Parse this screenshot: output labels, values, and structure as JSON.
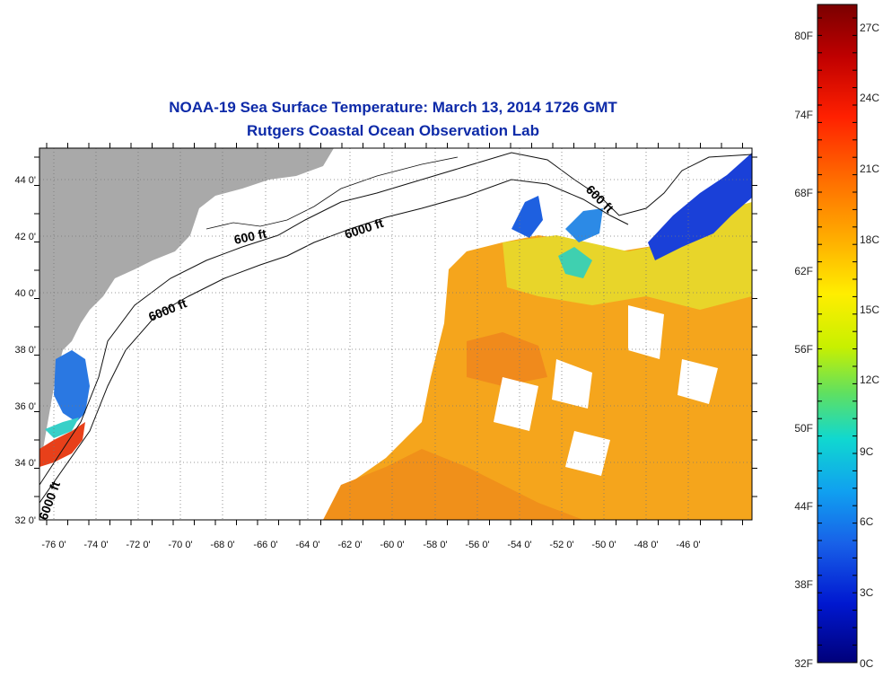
{
  "title": "NOAA-19 Sea Surface Temperature:  March 13, 2014 1726 GMT",
  "subtitle": "Rutgers Coastal Ocean Observation Lab",
  "map": {
    "lat_labels": [
      "44 0'",
      "42 0'",
      "40 0'",
      "38 0'",
      "36 0'",
      "34 0'",
      "32 0'"
    ],
    "lon_labels": [
      "-76 0'",
      "-74 0'",
      "-72 0'",
      "-70 0'",
      "-68 0'",
      "-66 0'",
      "-64 0'",
      "-62 0'",
      "-60 0'",
      "-58 0'",
      "-56 0'",
      "-54 0'",
      "-52 0'",
      "-50 0'",
      "-48 0'",
      "-46 0'"
    ],
    "contour_labels": [
      "600 ft",
      "6000 ft",
      "6000 ft",
      "600 ft",
      "6000 ft"
    ]
  },
  "colorbar": {
    "fahrenheit_labels": [
      "80F",
      "74F",
      "68F",
      "62F",
      "56F",
      "50F",
      "44F",
      "38F",
      "32F"
    ],
    "celsius_labels": [
      "27C",
      "24C",
      "21C",
      "18C",
      "15C",
      "12C",
      "9C",
      "6C",
      "3C",
      "0C"
    ],
    "colors": [
      "#7a0000",
      "#c00000",
      "#ff2000",
      "#ff7000",
      "#ffb000",
      "#ffee00",
      "#c8f000",
      "#60e060",
      "#10d8d0",
      "#10a0f0",
      "#1860e8",
      "#0018d0",
      "#00007a"
    ]
  }
}
